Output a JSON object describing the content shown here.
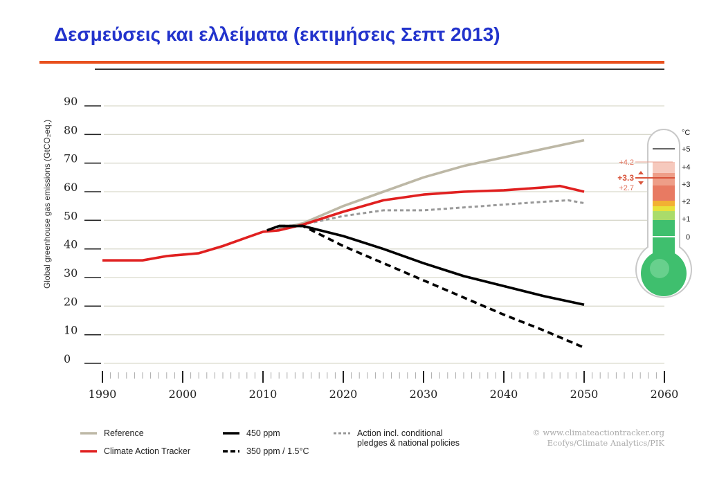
{
  "slide": {
    "title": "Δεσμεύσεις και ελλείματα (εκτιμήσεις Σεπτ 2013)"
  },
  "chart_data": {
    "type": "line",
    "ylabel": "Global greenhouse gas emissions (GtCO₂eq.)",
    "ylim": [
      0,
      90
    ],
    "xlim": [
      1990,
      2060
    ],
    "y_ticks": [
      "0",
      "10",
      "20",
      "30",
      "40",
      "50",
      "60",
      "70",
      "80",
      "90"
    ],
    "x_ticks": [
      "1990",
      "2000",
      "2010",
      "2020",
      "2030",
      "2040",
      "2050",
      "2060"
    ],
    "grid": true,
    "legend_position": "bottom",
    "series": [
      {
        "name": "Reference",
        "color": "#bdb8a6",
        "style": "solid",
        "x": [
          2012,
          2015,
          2020,
          2025,
          2030,
          2035,
          2040,
          2045,
          2050
        ],
        "y": [
          47,
          49,
          55,
          60,
          65,
          69,
          72,
          75,
          78
        ]
      },
      {
        "name": "Climate Action Tracker",
        "color": "#e02020",
        "style": "solid",
        "x": [
          1990,
          1992,
          1995,
          1998,
          2000,
          2002,
          2005,
          2008,
          2010,
          2012,
          2015,
          2020,
          2025,
          2030,
          2035,
          2040,
          2045,
          2047,
          2050
        ],
        "y": [
          36,
          36,
          36,
          37.5,
          38,
          38.5,
          41,
          44,
          46,
          46.5,
          48.5,
          53,
          57,
          59,
          60,
          60.5,
          61.5,
          62,
          60
        ]
      },
      {
        "name": "450 ppm",
        "color": "#000000",
        "style": "solid",
        "x": [
          2010.5,
          2012,
          2015,
          2020,
          2025,
          2030,
          2035,
          2040,
          2045,
          2050
        ],
        "y": [
          46.5,
          48,
          48,
          44.5,
          40,
          35,
          30.5,
          27,
          23.5,
          20.5
        ]
      },
      {
        "name": "350 ppm / 1.5°C",
        "color": "#000000",
        "style": "dashed",
        "x": [
          2012,
          2015,
          2020,
          2025,
          2030,
          2035,
          2040,
          2045,
          2050
        ],
        "y": [
          48,
          48,
          41,
          35,
          29,
          23,
          17,
          11.5,
          5.5
        ]
      },
      {
        "name": "Action incl. conditional pledges & national policies",
        "color": "#999999",
        "style": "dotted",
        "x": [
          2011,
          2015,
          2020,
          2025,
          2030,
          2035,
          2040,
          2045,
          2048,
          2050
        ],
        "y": [
          46.5,
          48.5,
          51.5,
          53.5,
          53.5,
          54.5,
          55.5,
          56.5,
          57,
          56
        ]
      }
    ]
  },
  "legend": [
    {
      "label": "Reference",
      "color": "#bdb8a6",
      "style": "solid"
    },
    {
      "label": "Climate Action Tracker",
      "color": "#e02020",
      "style": "solid"
    },
    {
      "label": "450 ppm",
      "color": "#000000",
      "style": "solid"
    },
    {
      "label": "350 ppm / 1.5°C",
      "color": "#000000",
      "style": "dashed"
    },
    {
      "label": "Action incl. conditional",
      "label2": "pledges & national policies",
      "color": "#999999",
      "style": "dotted"
    }
  ],
  "credit": {
    "line1": "© www.climateactiontracker.org",
    "line2": "Ecofys/Climate Analytics/PIK"
  },
  "thermometer": {
    "unit": "°C",
    "scale": [
      "+5",
      "+4",
      "+3",
      "+2",
      "+1",
      "0"
    ],
    "upper": "+4.2",
    "central": "+3.3",
    "lower": "+2.7",
    "band_colors": [
      "#f6c9bd",
      "#ee9e88",
      "#e87a62",
      "#f2b133",
      "#e8e23a",
      "#aadc6a",
      "#3fbf6e"
    ]
  }
}
